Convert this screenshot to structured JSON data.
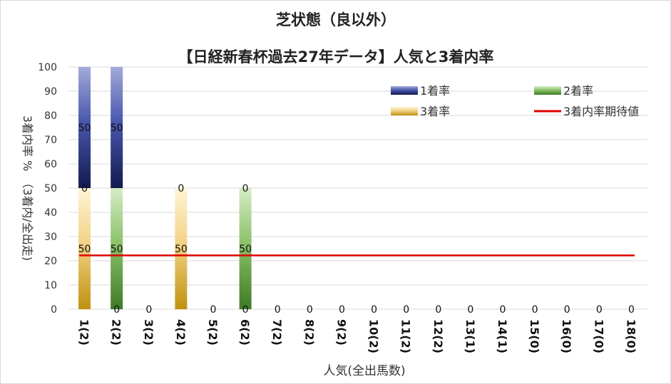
{
  "chart_data": {
    "type": "bar",
    "stacked": true,
    "title": "芝状態（良以外）",
    "subtitle": "【日経新春杯過去27年データ】人気と3着内率",
    "xlabel": "人気(全出馬数)",
    "ylabel": "3着内率 %　（3着内/全出走)",
    "ylim": [
      0,
      100
    ],
    "yticks": [
      0,
      10,
      20,
      30,
      40,
      50,
      60,
      70,
      80,
      90,
      100
    ],
    "grid": true,
    "legend_position": "top-right",
    "categories": [
      "1(2)",
      "2(2)",
      "3(2)",
      "4(2)",
      "5(2)",
      "6(2)",
      "7(2)",
      "8(2)",
      "9(2)",
      "10(2)",
      "11(2)",
      "12(2)",
      "13(1)",
      "14(1)",
      "15(0)",
      "16(0)",
      "17(0)",
      "18(0)"
    ],
    "series": [
      {
        "name": "3着率",
        "type": "bar",
        "color": "#c9a227",
        "values": [
          50,
          0,
          0,
          50,
          0,
          0,
          0,
          0,
          0,
          0,
          0,
          0,
          0,
          0,
          0,
          0,
          0,
          0
        ]
      },
      {
        "name": "2着率",
        "type": "bar",
        "color": "#6f9f4a",
        "values": [
          0,
          50,
          0,
          0,
          0,
          50,
          0,
          0,
          0,
          0,
          0,
          0,
          0,
          0,
          0,
          0,
          0,
          0
        ]
      },
      {
        "name": "1着率",
        "type": "bar",
        "color": "#3c4a9c",
        "values": [
          50,
          50,
          0,
          0,
          0,
          0,
          0,
          0,
          0,
          0,
          0,
          0,
          0,
          0,
          0,
          0,
          0,
          0
        ]
      },
      {
        "name": "3着内率期待値",
        "type": "line",
        "color": "#e00000",
        "values": [
          22.2,
          22.2,
          22.2,
          22.2,
          22.2,
          22.2,
          22.2,
          22.2,
          22.2,
          22.2,
          22.2,
          22.2,
          22.2,
          22.2,
          22.2,
          22.2,
          22.2,
          22.2
        ]
      }
    ],
    "data_labels": [
      {
        "category": "1(2)",
        "series": "3着率",
        "text": "50"
      },
      {
        "category": "1(2)",
        "series": "2着率",
        "text": "0"
      },
      {
        "category": "1(2)",
        "series": "1着率",
        "text": "50"
      },
      {
        "category": "2(2)",
        "series": "3着率",
        "text": "0"
      },
      {
        "category": "2(2)",
        "series": "2着率",
        "text": "50"
      },
      {
        "category": "2(2)",
        "series": "1着率",
        "text": "50"
      },
      {
        "category": "3(2)",
        "series": "3着率",
        "text": "0"
      },
      {
        "category": "4(2)",
        "series": "3着率",
        "text": "50"
      },
      {
        "category": "4(2)",
        "series": "2着率",
        "text": "0"
      },
      {
        "category": "5(2)",
        "series": "3着率",
        "text": "0"
      },
      {
        "category": "6(2)",
        "series": "2着率",
        "text": "50"
      },
      {
        "category": "6(2)",
        "series": "3着率",
        "text": "0"
      },
      {
        "category": "6(2)",
        "series": "1着率",
        "text": "0"
      },
      {
        "category": "7(2)",
        "series": "3着率",
        "text": "0"
      },
      {
        "category": "8(2)",
        "series": "3着率",
        "text": "0"
      },
      {
        "category": "9(2)",
        "series": "3着率",
        "text": "0"
      },
      {
        "category": "10(2)",
        "series": "3着率",
        "text": "0"
      },
      {
        "category": "11(2)",
        "series": "3着率",
        "text": "0"
      },
      {
        "category": "12(2)",
        "series": "3着率",
        "text": "0"
      },
      {
        "category": "13(1)",
        "series": "3着率",
        "text": "0"
      },
      {
        "category": "14(1)",
        "series": "3着率",
        "text": "0"
      },
      {
        "category": "15(0)",
        "series": "3着率",
        "text": "0"
      },
      {
        "category": "16(0)",
        "series": "3着率",
        "text": "0"
      },
      {
        "category": "17(0)",
        "series": "3着率",
        "text": "0"
      },
      {
        "category": "18(0)",
        "series": "3着率",
        "text": "0"
      }
    ]
  }
}
